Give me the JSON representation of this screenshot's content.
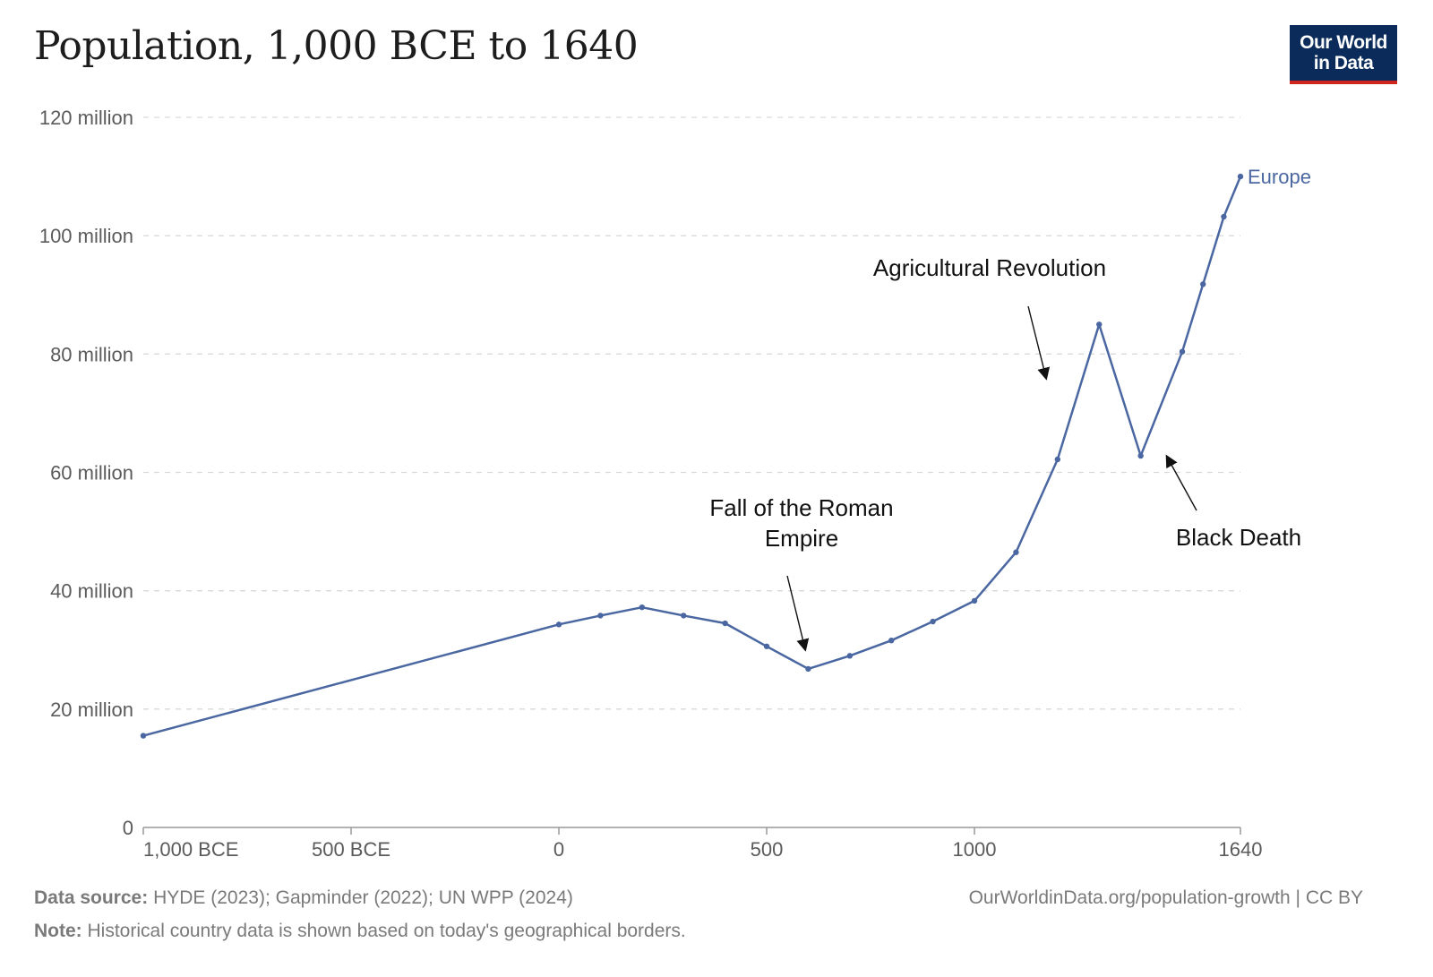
{
  "header": {
    "title": "Population, 1,000 BCE to 1640",
    "logo_line1": "Our World",
    "logo_line2": "in Data"
  },
  "footer": {
    "source_label": "Data source:",
    "source_text": "HYDE (2023); Gapminder (2022); UN WPP (2024)",
    "note_label": "Note:",
    "note_text": "Historical country data is shown based on today's geographical borders.",
    "url": "OurWorldinData.org/population-growth | CC BY"
  },
  "colors": {
    "series": "#4a67a1",
    "logo_bg": "#0b2c5b",
    "logo_accent": "#ce261e",
    "grid": "#d9d9d9"
  },
  "chart_data": {
    "type": "line",
    "title": "Population, 1,000 BCE to 1640",
    "xlabel": "",
    "ylabel": "",
    "xlim": [
      -1000,
      1640
    ],
    "ylim": [
      0,
      120000000
    ],
    "grid": true,
    "x_ticks": [
      {
        "value": -1000,
        "label": "1,000 BCE"
      },
      {
        "value": -500,
        "label": "500 BCE"
      },
      {
        "value": 0,
        "label": "0"
      },
      {
        "value": 500,
        "label": "500"
      },
      {
        "value": 1000,
        "label": "1000"
      },
      {
        "value": 1640,
        "label": "1640"
      }
    ],
    "y_ticks": [
      {
        "value": 0,
        "label": "0"
      },
      {
        "value": 20000000,
        "label": "20 million"
      },
      {
        "value": 40000000,
        "label": "40 million"
      },
      {
        "value": 60000000,
        "label": "60 million"
      },
      {
        "value": 80000000,
        "label": "80 million"
      },
      {
        "value": 100000000,
        "label": "100 million"
      },
      {
        "value": 120000000,
        "label": "120 million"
      }
    ],
    "series": [
      {
        "name": "Europe",
        "x": [
          -1000,
          0,
          100,
          200,
          300,
          400,
          500,
          600,
          700,
          800,
          900,
          1000,
          1100,
          1200,
          1300,
          1400,
          1500,
          1550,
          1600,
          1640
        ],
        "values": [
          15500000,
          34300000,
          35800000,
          37200000,
          35800000,
          34500000,
          30600000,
          26800000,
          29000000,
          31600000,
          34800000,
          38300000,
          46500000,
          62200000,
          85000000,
          62800000,
          80400000,
          91800000,
          103200000,
          110000000
        ]
      }
    ],
    "annotations": [
      {
        "lines": [
          "Fall of the Roman",
          "Empire"
        ],
        "x": 600,
        "y": 26800000
      },
      {
        "lines": [
          "Agricultural Revolution"
        ],
        "x": 1200,
        "y": 75000000
      },
      {
        "lines": [
          "Black Death"
        ],
        "x": 1400,
        "y": 62800000
      }
    ]
  }
}
